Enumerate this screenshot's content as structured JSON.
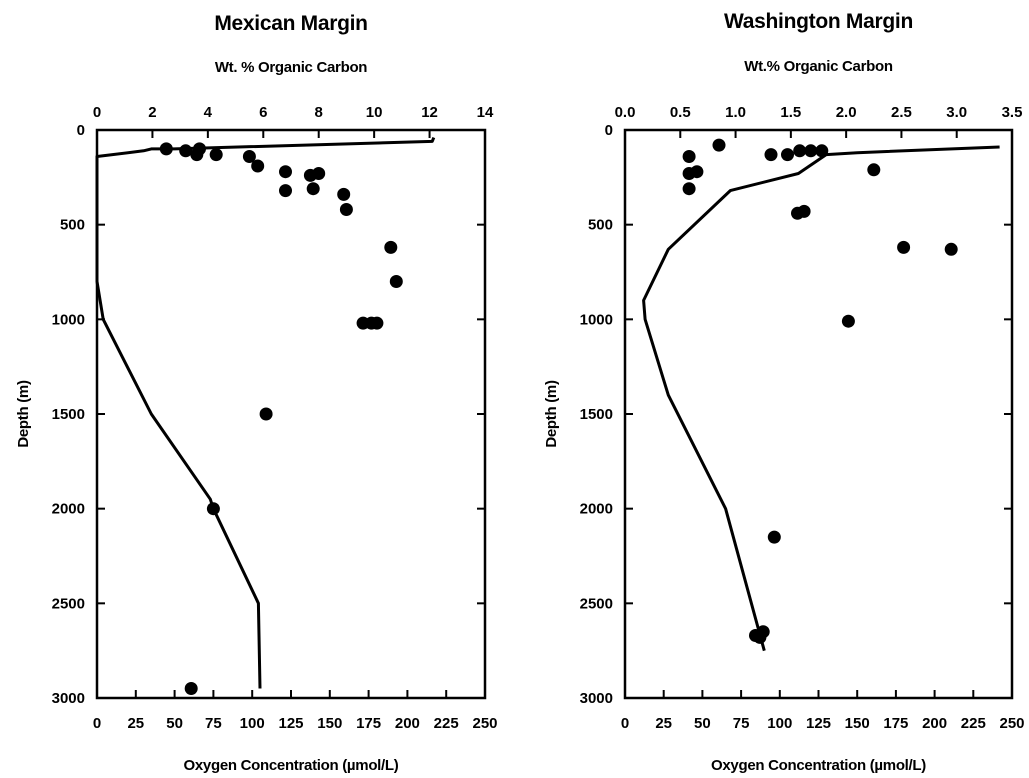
{
  "chart_data": [
    {
      "type": "scatter",
      "title": "Mexican Margin",
      "top_xlabel": "Wt. % Organic Carbon",
      "bottom_xlabel": "Oxygen Concentration (µmol/L)",
      "ylabel": "Depth (m)",
      "top_xlim": [
        0,
        14
      ],
      "top_xticks": [
        "0",
        "2",
        "4",
        "6",
        "8",
        "10",
        "12",
        "14"
      ],
      "bottom_xlim": [
        0,
        250
      ],
      "bottom_xticks": [
        "0",
        "25",
        "50",
        "75",
        "100",
        "125",
        "150",
        "175",
        "200",
        "225",
        "250"
      ],
      "ylim": [
        0,
        3000
      ],
      "yticks": [
        "0",
        "500",
        "1000",
        "1500",
        "2000",
        "2500",
        "3000"
      ],
      "y_inverted": true,
      "grid": false,
      "series": [
        {
          "kind": "line",
          "axis": "bottom",
          "points": [
            [
              217,
              40
            ],
            [
              216,
              60
            ],
            [
              50,
              100
            ],
            [
              35,
              100
            ],
            [
              30,
              110
            ],
            [
              0,
              140
            ],
            [
              0,
              700
            ],
            [
              0,
              800
            ],
            [
              4,
              1000
            ],
            [
              35,
              1500
            ],
            [
              73,
              1950
            ],
            [
              75,
              2000
            ],
            [
              104,
              2500
            ],
            [
              105,
              2950
            ]
          ]
        },
        {
          "kind": "scatter",
          "axis": "top",
          "points": [
            [
              2.5,
              100
            ],
            [
              3.2,
              110
            ],
            [
              3.6,
              130
            ],
            [
              3.7,
              100
            ],
            [
              4.3,
              130
            ],
            [
              5.5,
              140
            ],
            [
              5.8,
              190
            ],
            [
              6.8,
              220
            ],
            [
              6.8,
              320
            ],
            [
              7.7,
              240
            ],
            [
              7.8,
              310
            ],
            [
              8.0,
              230
            ],
            [
              8.9,
              340
            ],
            [
              9.0,
              420
            ],
            [
              10.6,
              620
            ],
            [
              10.8,
              800
            ],
            [
              9.6,
              1020
            ],
            [
              9.9,
              1020
            ],
            [
              10.1,
              1020
            ],
            [
              6.1,
              1500
            ],
            [
              4.2,
              2000
            ],
            [
              3.4,
              2950
            ]
          ]
        }
      ]
    },
    {
      "type": "scatter",
      "title": "Washington Margin",
      "top_xlabel": "Wt.% Organic Carbon",
      "bottom_xlabel": "Oxygen Concentration (µmol/L)",
      "ylabel": "Depth (m)",
      "top_xlim": [
        0,
        3.5
      ],
      "top_xticks": [
        "0.0",
        "0.5",
        "1.0",
        "1.5",
        "2.0",
        "2.5",
        "3.0",
        "3.5"
      ],
      "bottom_xlim": [
        0,
        250
      ],
      "bottom_xticks": [
        "0",
        "25",
        "50",
        "75",
        "100",
        "125",
        "150",
        "175",
        "200",
        "225",
        "250"
      ],
      "ylim": [
        0,
        3000
      ],
      "yticks": [
        "0",
        "500",
        "1000",
        "1500",
        "2000",
        "2500",
        "3000"
      ],
      "y_inverted": true,
      "grid": false,
      "series": [
        {
          "kind": "line",
          "axis": "bottom",
          "points": [
            [
              242,
              90
            ],
            [
              150,
              120
            ],
            [
              130,
              130
            ],
            [
              112,
              230
            ],
            [
              68,
              320
            ],
            [
              28,
              630
            ],
            [
              12,
              900
            ],
            [
              13,
              1000
            ],
            [
              28,
              1400
            ],
            [
              65,
              2000
            ],
            [
              90,
              2750
            ]
          ]
        },
        {
          "kind": "scatter",
          "axis": "top",
          "points": [
            [
              0.58,
              140
            ],
            [
              0.58,
              230
            ],
            [
              0.65,
              220
            ],
            [
              0.58,
              310
            ],
            [
              0.85,
              80
            ],
            [
              1.32,
              130
            ],
            [
              1.47,
              130
            ],
            [
              1.58,
              110
            ],
            [
              1.68,
              110
            ],
            [
              1.78,
              110
            ],
            [
              2.25,
              210
            ],
            [
              1.56,
              440
            ],
            [
              1.62,
              430
            ],
            [
              2.52,
              620
            ],
            [
              2.95,
              630
            ],
            [
              2.02,
              1010
            ],
            [
              1.35,
              2150
            ],
            [
              1.25,
              2650
            ],
            [
              1.18,
              2670
            ],
            [
              1.22,
              2680
            ]
          ]
        }
      ]
    }
  ]
}
